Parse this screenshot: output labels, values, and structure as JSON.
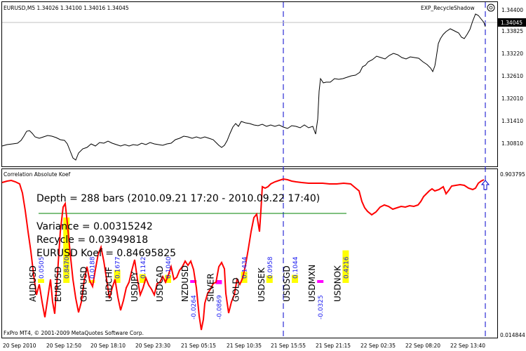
{
  "main_panel": {
    "header": "EURUSD,M5  1.34026  1.34100  1.34016  1.34045",
    "indicator_name": "EXP_RecycleShadow",
    "price_labels": [
      "1.34400",
      "1.33825",
      "1.33220",
      "1.32610",
      "1.32010",
      "1.31410",
      "1.30810"
    ],
    "current_price": "1.34045"
  },
  "sub_panel": {
    "title": "Correlation Absolute Koef",
    "scale_max": "0.903795",
    "scale_min": "0.014844",
    "depth_text": "Depth = 288 bars (2010.09.21 17:20 - 2010.09.22 17:40)",
    "variance_text": "Variance = 0.00315242",
    "recycle_text": "Recycle = 0.03949818",
    "koef_text": "EURUSD Koef = 0.84695825",
    "symbols": [
      {
        "name": "AUDUSD",
        "value": "0.0505",
        "bar": 0.0505,
        "color": "#ffff00"
      },
      {
        "name": "EURUSD",
        "value": "0.8470",
        "bar": 0.847,
        "color": "#ffff00"
      },
      {
        "name": "GBPUSD",
        "value": "0.0188",
        "bar": 0.0188,
        "color": "#ffff00"
      },
      {
        "name": "USDCHF",
        "value": "0.1677",
        "bar": 0.1677,
        "color": "#ffff00"
      },
      {
        "name": "USDJPY",
        "value": "0.1142",
        "bar": 0.1142,
        "color": "#ffff00"
      },
      {
        "name": "USDCAD",
        "value": "0.1040",
        "bar": 0.104,
        "color": "#ffff00"
      },
      {
        "name": "NZDUSD",
        "value": "-0.0264",
        "bar": -0.0264,
        "color": "#ff00ff"
      },
      {
        "name": "SILVER",
        "value": "-0.0869",
        "bar": -0.0869,
        "color": "#ff00ff"
      },
      {
        "name": "GOLD",
        "value": "0.1434",
        "bar": 0.1434,
        "color": "#ffff00"
      },
      {
        "name": "USDSEK",
        "value": "0.0958",
        "bar": 0.0958,
        "color": "#ffff00"
      },
      {
        "name": "USDSGD",
        "value": "0.1044",
        "bar": 0.1044,
        "color": "#ffff00"
      },
      {
        "name": "USDMXN",
        "value": "-0.0325",
        "bar": -0.0325,
        "color": "#ff00ff"
      },
      {
        "name": "USDNOK",
        "value": "0.4216",
        "bar": 0.4216,
        "color": "#ffff00"
      }
    ]
  },
  "time_labels": [
    "20 Sep 2010",
    "20 Sep 12:50",
    "20 Sep 18:10",
    "20 Sep 23:30",
    "21 Sep 05:15",
    "21 Sep 10:35",
    "21 Sep 15:55",
    "21 Sep 21:15",
    "22 Sep 02:35",
    "22 Sep 08:20",
    "22 Sep 13:40"
  ],
  "copyright": "FxPro MT4, © 2001-2009 MetaQuotes Software Corp.",
  "colors": {
    "price_line": "#000000",
    "correlation_line": "#ff0000",
    "dashed_lines": "#0000cc",
    "level_line": "#008000",
    "positive_bar": "#ffff00",
    "negative_bar": "#ff00ff",
    "value_text": "#1a1af0"
  }
}
